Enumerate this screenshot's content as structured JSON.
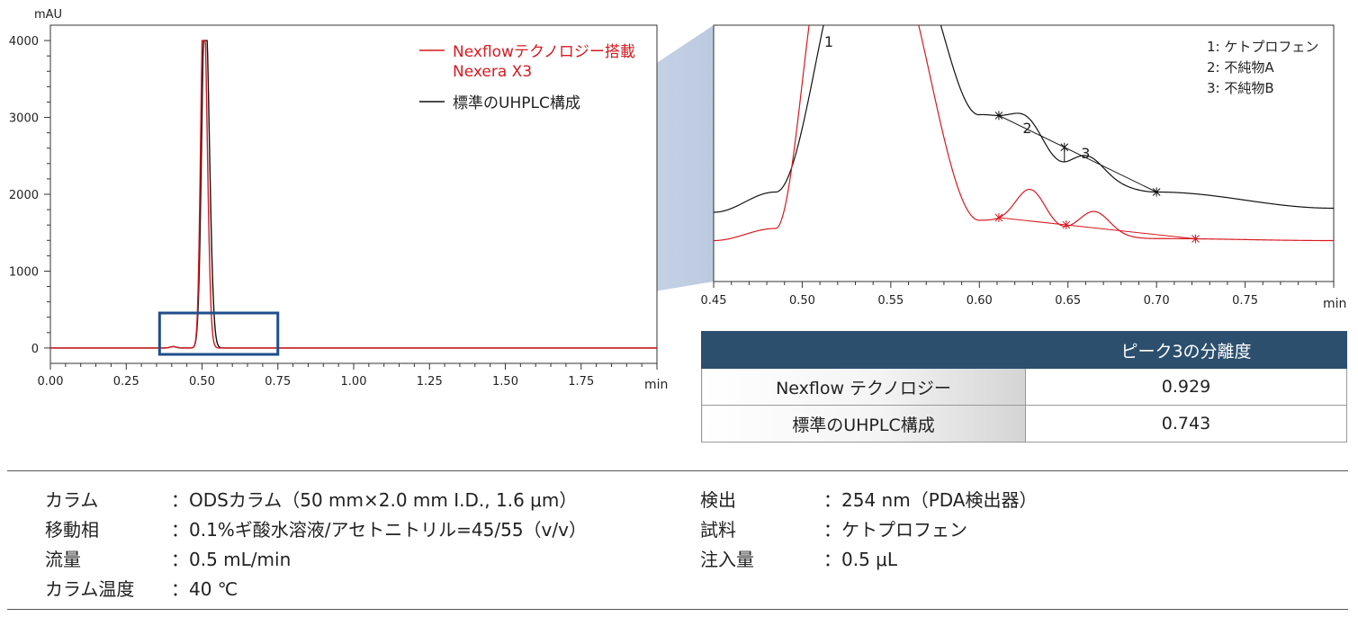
{
  "chart_data": [
    {
      "type": "line",
      "ylabel": "mAU",
      "xlabel": "min",
      "xlim": [
        0.0,
        2.0
      ],
      "ylim": [
        -200,
        4200
      ],
      "x_ticks": [
        "0.00",
        "0.25",
        "0.50",
        "0.75",
        "1.00",
        "1.25",
        "1.50",
        "1.75"
      ],
      "y_ticks": [
        "0",
        "1000",
        "2000",
        "3000",
        "4000"
      ],
      "legend_position": "top-right",
      "series": [
        {
          "name": "Nexflowテクノロジー搭載\nNexera X3",
          "color": "#d71920",
          "peaks": [
            {
              "rt": 0.505,
              "height": 4000,
              "width": 0.0095
            }
          ]
        },
        {
          "name": "標準のUHPLC構成",
          "color": "#111111",
          "peaks": [
            {
              "rt": 0.51,
              "height": 4000,
              "width": 0.011
            }
          ]
        }
      ],
      "zoom_box_x": [
        0.36,
        0.75
      ]
    },
    {
      "type": "line",
      "xlabel": "min",
      "xlim": [
        0.45,
        0.8
      ],
      "x_ticks": [
        "0.45",
        "0.50",
        "0.55",
        "0.60",
        "0.65",
        "0.70",
        "0.75"
      ],
      "legend_position": "top-right",
      "peak_labels": [
        "1",
        "2",
        "3"
      ],
      "peak_label_x": [
        0.515,
        0.627,
        0.66
      ],
      "legend": [
        "1: ケトプロフェン",
        "2: 不純物A",
        "3: 不純物B"
      ],
      "series": [
        {
          "name": "標準のUHPLC構成",
          "color": "#111111",
          "baseline": [
            [
              0.45,
              1.2
            ],
            [
              0.485,
              1.7
            ],
            [
              0.53,
              8.0
            ],
            [
              0.56,
              7.5
            ],
            [
              0.6,
              3.6
            ],
            [
              0.65,
              2.2
            ],
            [
              0.7,
              1.7
            ],
            [
              0.8,
              1.3
            ]
          ],
          "peaks": [
            {
              "rt": 0.628,
              "height": 0.75,
              "width": 0.0095
            },
            {
              "rt": 0.661,
              "height": 0.45,
              "width": 0.009
            }
          ]
        },
        {
          "name": "Nexflow テクノロジー",
          "color": "#d71920",
          "baseline": [
            [
              0.45,
              0.5
            ],
            [
              0.485,
              0.8
            ],
            [
              0.515,
              8.0
            ],
            [
              0.545,
              8.0
            ],
            [
              0.6,
              1.0
            ],
            [
              0.65,
              0.7
            ],
            [
              0.7,
              0.55
            ],
            [
              0.8,
              0.5
            ]
          ],
          "peaks": [
            {
              "rt": 0.629,
              "height": 0.95,
              "width": 0.0085
            },
            {
              "rt": 0.665,
              "height": 0.55,
              "width": 0.0085
            }
          ]
        }
      ],
      "integration_markers": {
        "black": [
          0.611,
          0.648,
          0.7
        ],
        "red": [
          0.611,
          0.649,
          0.722
        ]
      }
    }
  ],
  "resolution_table": {
    "header": [
      "",
      "ピーク3の分離度"
    ],
    "rows": [
      {
        "label": "Nexflow テクノロジー",
        "value": "0.929"
      },
      {
        "label": "標準のUHPLC構成",
        "value": "0.743"
      }
    ]
  },
  "conditions": {
    "left": [
      {
        "key": "カラム",
        "value": "：ODSカラム（50 mm×2.0 mm I.D., 1.6 μm）"
      },
      {
        "key": "移動相",
        "value": "：0.1%ギ酸水溶液/アセトニトリル=45/55（v/v）"
      },
      {
        "key": "流量",
        "value": "：0.5 mL/min"
      },
      {
        "key": "カラム温度",
        "value": "：40 ℃"
      }
    ],
    "right": [
      {
        "key": "検出",
        "value": "：254 nm（PDA検出器）"
      },
      {
        "key": "試料",
        "value": "：ケトプロフェン"
      },
      {
        "key": "注入量",
        "value": "：0.5 μL"
      }
    ]
  },
  "colors": {
    "red": "#d71920",
    "black": "#111111",
    "table_header": "#2c4f6e",
    "zoom_box": "#1f4e8c"
  }
}
